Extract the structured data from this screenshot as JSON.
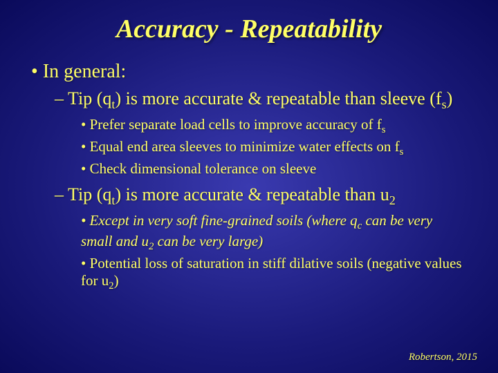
{
  "title": "Accuracy - Repeatability",
  "level1_1": "In general:",
  "level2_1_pre": "Tip (q",
  "level2_1_sub1": "t",
  "level2_1_mid": ") is more accurate & repeatable than sleeve (f",
  "level2_1_sub2": "s",
  "level2_1_post": ")",
  "level3_1_pre": "Prefer separate load cells to improve accuracy of f",
  "level3_1_sub": "s",
  "level3_2_pre": "Equal end area sleeves to minimize water effects on f",
  "level3_2_sub": "s",
  "level3_3": "Check dimensional tolerance on sleeve",
  "level2_2_pre": "Tip (q",
  "level2_2_sub1": "t",
  "level2_2_mid": ") is more accurate & repeatable than u",
  "level2_2_sub2": "2",
  "level3_4_pre": "Except in very soft fine-grained soils (where q",
  "level3_4_sub1": "c",
  "level3_4_mid": " can be very small and u",
  "level3_4_sub2": "2",
  "level3_4_post": " can be very large)",
  "level3_5_pre": "Potential loss of saturation in stiff dilative soils (negative values for u",
  "level3_5_sub": "2",
  "level3_5_post": ")",
  "citation": "Robertson, 2015",
  "colors": {
    "text": "#ffff66",
    "bg_center": "#3a3ab0",
    "bg_edge": "#0a0a5a"
  },
  "fonts": {
    "family": "Times New Roman",
    "title_size": 38,
    "level1_size": 28,
    "level2_size": 26,
    "level3_size": 21,
    "citation_size": 15
  }
}
